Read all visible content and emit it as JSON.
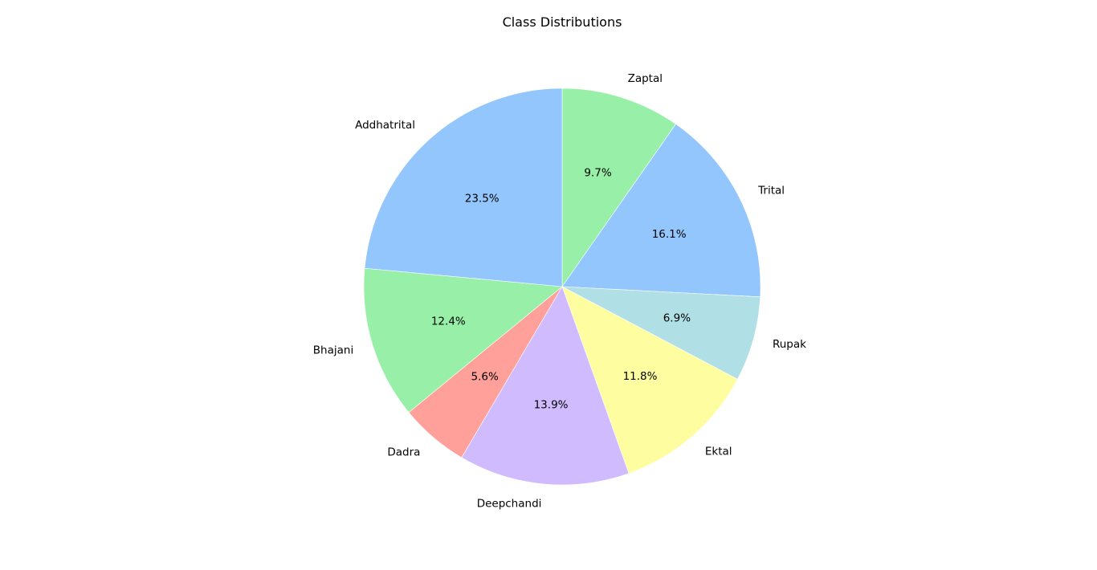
{
  "chart_data": {
    "type": "pie",
    "title": "Class Distributions",
    "start_angle_deg": 90,
    "direction": "clockwise",
    "slices": [
      {
        "label": "Zaptal",
        "percent": 9.7,
        "percent_label": "9.7%",
        "color": "#98f0a8"
      },
      {
        "label": "Trital",
        "percent": 16.1,
        "percent_label": "16.1%",
        "color": "#94c6fe"
      },
      {
        "label": "Rupak",
        "percent": 6.9,
        "percent_label": "6.9%",
        "color": "#b0e0e6"
      },
      {
        "label": "Ektal",
        "percent": 11.8,
        "percent_label": "11.8%",
        "color": "#fefea0"
      },
      {
        "label": "Deepchandi",
        "percent": 13.9,
        "percent_label": "13.9%",
        "color": "#d0bbff"
      },
      {
        "label": "Dadra",
        "percent": 5.6,
        "percent_label": "5.6%",
        "color": "#ffa19a"
      },
      {
        "label": "Bhajani",
        "percent": 12.4,
        "percent_label": "12.4%",
        "color": "#98f0a8"
      },
      {
        "label": "Addhatrital",
        "percent": 23.5,
        "percent_label": "23.5%",
        "color": "#94c6fe"
      }
    ]
  }
}
